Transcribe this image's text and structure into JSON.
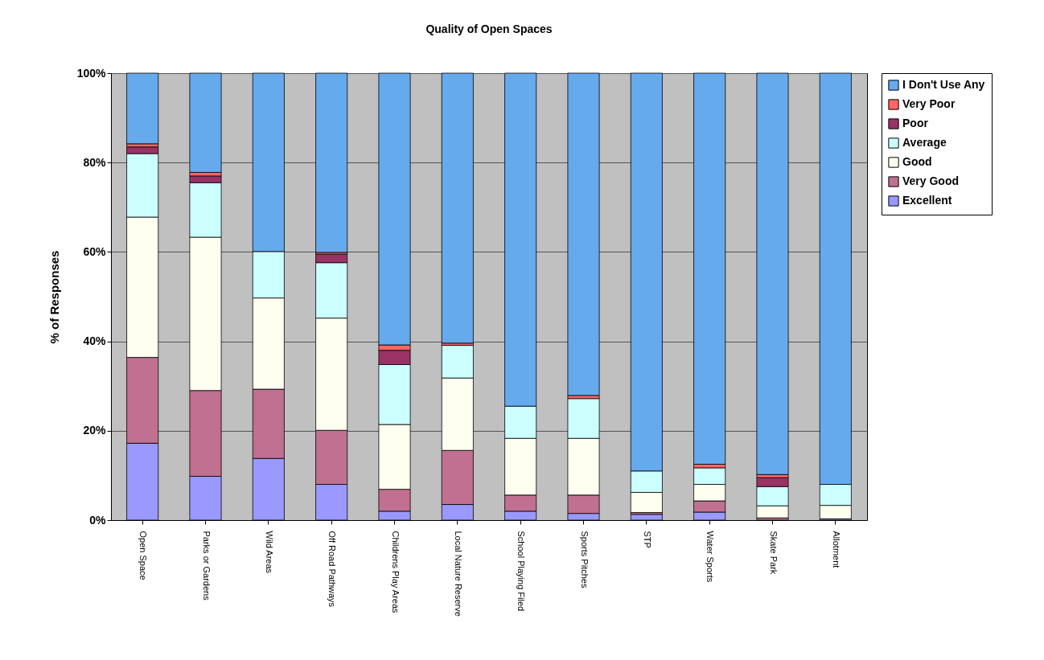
{
  "chart_data": {
    "type": "bar",
    "stacked": true,
    "title": "Quality of Open Spaces",
    "ylabel": "% of Responses",
    "categories": [
      "Open Space",
      "Parks or Gardens",
      "Wild Areas",
      "Off Road Pathways",
      "Childrens Play Areas",
      "Local Nature Reserve",
      "School Playing Filed",
      "Sports Pitches",
      "STP",
      "Water Sports",
      "Skate Park",
      "Allotment"
    ],
    "series": [
      {
        "name": "Excellent",
        "color": "#9999ff",
        "values": [
          17.2,
          9.8,
          13.8,
          8,
          2,
          3.5,
          2,
          1.5,
          1.3,
          1.8,
          0,
          0.3
        ]
      },
      {
        "name": "Very Good",
        "color": "#c07090",
        "values": [
          19.2,
          19.2,
          15.5,
          12.1,
          4.9,
          12.1,
          3.6,
          4.1,
          0.4,
          2.5,
          0.5,
          0
        ]
      },
      {
        "name": "Good",
        "color": "#fffff0",
        "values": [
          31.4,
          34.3,
          20.4,
          25.1,
          14.5,
          16.2,
          12.7,
          12.7,
          4.5,
          3.7,
          2.7,
          3
        ]
      },
      {
        "name": "Average",
        "color": "#ccffff",
        "values": [
          14.2,
          12.2,
          10.4,
          12.4,
          13.4,
          7.3,
          7.2,
          8.9,
          4.8,
          3.7,
          4.3,
          4.7
        ]
      },
      {
        "name": "Poor",
        "color": "#993366",
        "values": [
          1.5,
          1.5,
          0,
          1.9,
          3.2,
          0,
          0,
          0,
          0,
          0,
          2,
          0
        ]
      },
      {
        "name": "Very Poor",
        "color": "#ff6666",
        "values": [
          0.7,
          0.8,
          0,
          0.4,
          1.2,
          0.5,
          0,
          0.7,
          0,
          0.8,
          0.7,
          0
        ]
      },
      {
        "name": "I Don't Use Any",
        "color": "#66aaee",
        "values": [
          15.8,
          22.2,
          39.9,
          40.1,
          60.8,
          60.4,
          74.5,
          72.1,
          89,
          87.5,
          89.8,
          92
        ]
      }
    ],
    "ylim": [
      0,
      100
    ],
    "yticks": [
      {
        "value": 0,
        "label": "0%"
      },
      {
        "value": 20,
        "label": "20%"
      },
      {
        "value": 40,
        "label": "40%"
      },
      {
        "value": 60,
        "label": "60%"
      },
      {
        "value": 80,
        "label": "80%"
      },
      {
        "value": 100,
        "label": "100%"
      }
    ],
    "grid": "y",
    "legend": "right"
  }
}
